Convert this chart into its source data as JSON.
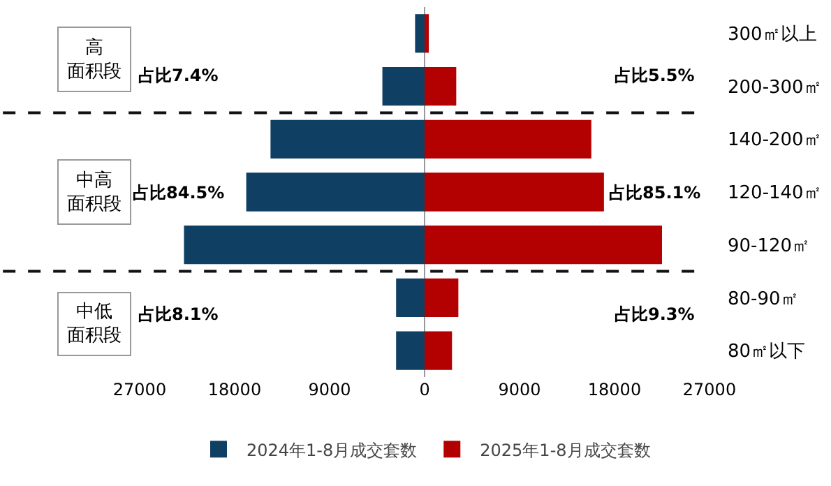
{
  "chart_data": {
    "type": "bar",
    "orientation": "horizontal",
    "stacked": true,
    "categories": [
      "300㎡以上",
      "200-300㎡",
      "140-200㎡",
      "120-140㎡",
      "90-120㎡",
      "80-90㎡",
      "80㎡以下"
    ],
    "series": [
      {
        "name": "2024年1-8月成交套数",
        "color": "#0f3f63",
        "values": [
          -900,
          -4000,
          -14600,
          -16900,
          -22800,
          -2700,
          -2700
        ]
      },
      {
        "name": "2025年1-8月成交套数",
        "color": "#b30000",
        "values": [
          400,
          3000,
          15800,
          17000,
          22500,
          3200,
          2600
        ]
      }
    ],
    "xlim": [
      -27000,
      27000
    ],
    "xticks": [
      {
        "value": -27000,
        "label": "27000"
      },
      {
        "value": -18000,
        "label": "18000"
      },
      {
        "value": -9000,
        "label": "9000"
      },
      0,
      9000,
      18000,
      27000
    ],
    "legend": "bottom",
    "annotations": [
      "高面积段",
      "占比7.4%",
      "占比5.5%",
      "中高面积段",
      "占比84.5%",
      "占比85.1%",
      "中低面积段",
      "占比8.1%",
      "占比9.3%"
    ]
  }
}
